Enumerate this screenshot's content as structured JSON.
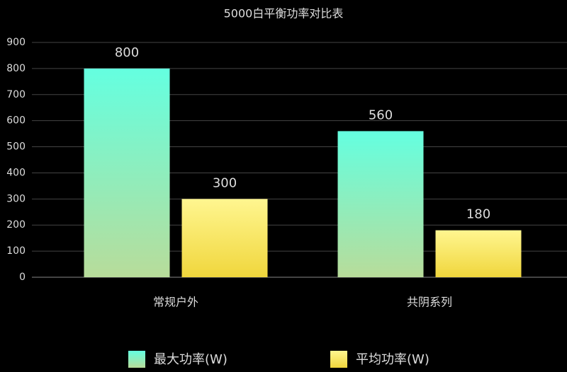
{
  "chart_data": {
    "type": "bar",
    "title": "5000白平衡功率对比表",
    "categories": [
      "常规户外",
      "共阴系列"
    ],
    "series": [
      {
        "name": "最大功率(W)",
        "color": "#64ffe0",
        "gradient_end": "#b8dc9a",
        "values": [
          800,
          560
        ]
      },
      {
        "name": "平均功率(W)",
        "color": "#fff690",
        "gradient_end": "#f0d63c",
        "values": [
          300,
          180
        ]
      }
    ],
    "ylim": [
      0,
      900
    ],
    "yticks": [
      0,
      100,
      200,
      300,
      400,
      500,
      600,
      700,
      800,
      900
    ],
    "grid": true
  }
}
